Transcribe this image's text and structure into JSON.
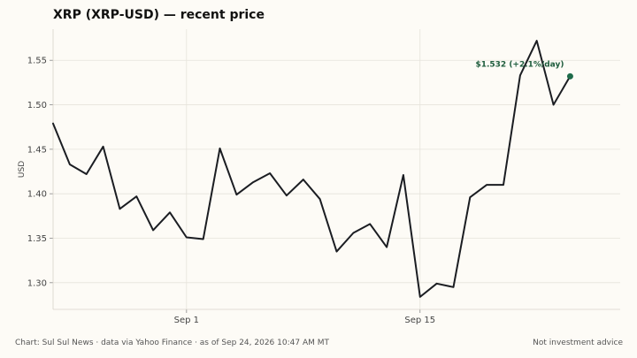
{
  "chart_data": {
    "type": "line",
    "title": "XRP (XRP-USD) — recent price",
    "ylabel": "USD",
    "xlabel": "",
    "ylim": [
      1.27,
      1.585
    ],
    "yticks": [
      1.3,
      1.35,
      1.4,
      1.45,
      1.5,
      1.55
    ],
    "ytick_labels": [
      "1.30",
      "1.35",
      "1.40",
      "1.45",
      "1.50",
      "1.55"
    ],
    "xlim": [
      -8,
      26
    ],
    "xticks": [
      0,
      14
    ],
    "xtick_labels": [
      "Sep 1",
      "Sep 15"
    ],
    "grid": true,
    "series": [
      {
        "x": [
          -8,
          -7,
          -6,
          -5,
          -4,
          -3,
          -2,
          -1,
          0,
          1,
          2,
          3,
          4,
          5,
          6,
          7,
          8,
          9,
          10,
          11,
          12,
          13,
          14,
          15,
          16,
          17,
          18,
          19,
          20,
          21,
          22,
          23
        ],
        "values": [
          1.479,
          1.433,
          1.422,
          1.453,
          1.383,
          1.397,
          1.359,
          1.379,
          1.351,
          1.349,
          1.451,
          1.399,
          1.413,
          1.423,
          1.398,
          1.416,
          1.394,
          1.335,
          1.356,
          1.366,
          1.34,
          1.421,
          1.284,
          1.299,
          1.295,
          1.396,
          1.41,
          1.41,
          1.533,
          1.572,
          1.5,
          1.532
        ],
        "color": "#1b1d22"
      }
    ],
    "last_point_color": "#1e6b4a",
    "annotation": {
      "text": "$1.532  (+2.1%/day)",
      "color": "#1e5c3c"
    }
  },
  "footer": {
    "source": "Chart: Sul Sul News · data via Yahoo Finance · as of Sep 24, 2026 10:47 AM MT",
    "disclaimer": "Not investment advice"
  }
}
